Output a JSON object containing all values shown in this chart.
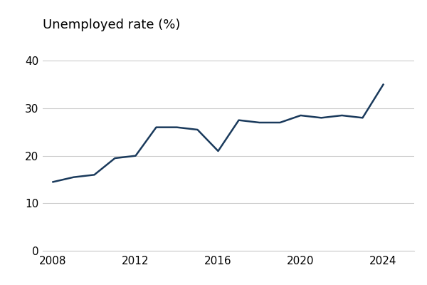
{
  "title": "Unemployed rate (%)",
  "x_values": [
    2008,
    2009,
    2010,
    2011,
    2012,
    2013,
    2014,
    2015,
    2016,
    2017,
    2018,
    2019,
    2020,
    2021,
    2022,
    2023,
    2024
  ],
  "y_values": [
    14.5,
    15.5,
    16.0,
    19.5,
    20.0,
    26.0,
    26.0,
    25.5,
    21.0,
    27.5,
    27.0,
    27.0,
    28.5,
    28.0,
    28.5,
    28.0,
    35.0
  ],
  "line_color": "#1a3a5c",
  "line_width": 1.8,
  "y_ticks": [
    0,
    10,
    20,
    30,
    40
  ],
  "x_ticks": [
    2008,
    2012,
    2016,
    2020,
    2024
  ],
  "ylim": [
    0,
    42
  ],
  "xlim": [
    2007.5,
    2025.5
  ],
  "background_color": "#ffffff",
  "grid_color": "#cccccc",
  "title_fontsize": 13,
  "tick_fontsize": 11
}
